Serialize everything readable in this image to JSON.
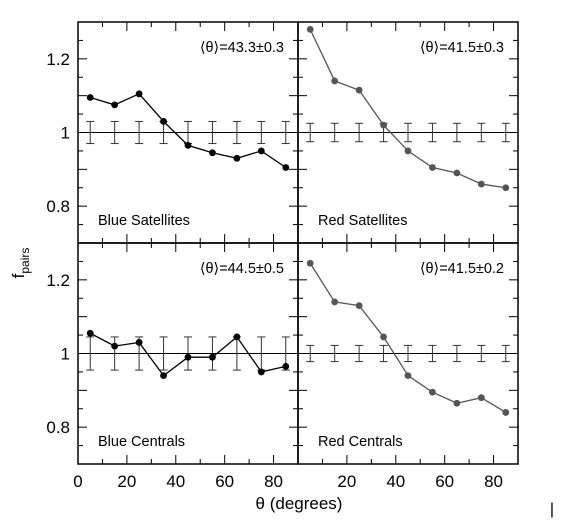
{
  "figure": {
    "ylabel": "f",
    "ylabel_sub": "pairs",
    "xlabel": "θ (degrees)",
    "blue_color": "#000000",
    "red_color": "#555555",
    "stray_mark": "|"
  },
  "chart_data": [
    {
      "type": "line",
      "panel": "top-left",
      "label": "Blue Satellites",
      "annotation": "⟨θ⟩=43.3±0.3",
      "xlim": [
        0,
        90
      ],
      "ylim": [
        0.7,
        1.3
      ],
      "xticks": [
        0,
        20,
        40,
        60,
        80
      ],
      "yticks": [
        0.8,
        1,
        1.2
      ],
      "reference_line": 1,
      "x": [
        5,
        15,
        25,
        35,
        45,
        55,
        65,
        75,
        85
      ],
      "y": [
        1.095,
        1.075,
        1.105,
        1.03,
        0.965,
        0.945,
        0.93,
        0.95,
        0.905
      ],
      "errors": [
        0.03,
        0.03,
        0.03,
        0.03,
        0.03,
        0.03,
        0.03,
        0.03,
        0.03
      ],
      "color": "#000000"
    },
    {
      "type": "line",
      "panel": "top-right",
      "label": "Red Satellites",
      "annotation": "⟨θ⟩=41.5±0.3",
      "xlim": [
        0,
        90
      ],
      "ylim": [
        0.7,
        1.3
      ],
      "xticks": [
        0,
        20,
        40,
        60,
        80
      ],
      "yticks": [
        0.8,
        1,
        1.2
      ],
      "reference_line": 1,
      "x": [
        5,
        15,
        25,
        35,
        45,
        55,
        65,
        75,
        85
      ],
      "y": [
        1.28,
        1.14,
        1.115,
        1.02,
        0.95,
        0.905,
        0.89,
        0.86,
        0.85
      ],
      "errors": [
        0.025,
        0.025,
        0.025,
        0.025,
        0.025,
        0.025,
        0.025,
        0.025,
        0.025
      ],
      "color": "#555555"
    },
    {
      "type": "line",
      "panel": "bottom-left",
      "label": "Blue Centrals",
      "annotation": "⟨θ⟩=44.5±0.5",
      "xlim": [
        0,
        90
      ],
      "ylim": [
        0.7,
        1.3
      ],
      "xticks": [
        0,
        20,
        40,
        60,
        80
      ],
      "yticks": [
        0.8,
        1,
        1.2
      ],
      "reference_line": 1,
      "x": [
        5,
        15,
        25,
        35,
        45,
        55,
        65,
        75,
        85
      ],
      "y": [
        1.055,
        1.02,
        1.03,
        0.94,
        0.99,
        0.99,
        1.045,
        0.95,
        0.965
      ],
      "errors": [
        0.045,
        0.045,
        0.045,
        0.045,
        0.045,
        0.045,
        0.045,
        0.045,
        0.045
      ],
      "color": "#000000"
    },
    {
      "type": "line",
      "panel": "bottom-right",
      "label": "Red Centrals",
      "annotation": "⟨θ⟩=41.5±0.2",
      "xlim": [
        0,
        90
      ],
      "ylim": [
        0.7,
        1.3
      ],
      "xticks": [
        0,
        20,
        40,
        60,
        80
      ],
      "yticks": [
        0.8,
        1,
        1.2
      ],
      "reference_line": 1,
      "x": [
        5,
        15,
        25,
        35,
        45,
        55,
        65,
        75,
        85
      ],
      "y": [
        1.245,
        1.14,
        1.13,
        1.045,
        0.94,
        0.895,
        0.865,
        0.88,
        0.84
      ],
      "errors": [
        0.022,
        0.022,
        0.022,
        0.022,
        0.022,
        0.022,
        0.022,
        0.022,
        0.022
      ],
      "color": "#555555"
    }
  ]
}
